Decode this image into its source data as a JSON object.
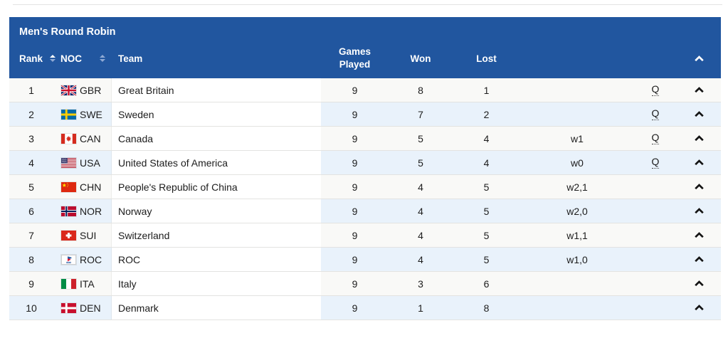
{
  "table": {
    "title": "Men's Round Robin",
    "header": {
      "rank_label": "Rank",
      "noc_label": "NOC",
      "team_label": "Team",
      "games_played_label": "Games Played",
      "won_label": "Won",
      "lost_label": "Lost"
    },
    "colors": {
      "header_bg": "#21569f",
      "row_bg": "#f9f9f7",
      "row_alt_bg": "#e9f2fb",
      "team_cell_bg": "#ffffff",
      "sort_active": "#ffffff",
      "sort_inactive": "#8fa9d4"
    },
    "sort_state": {
      "rank": "ascending",
      "noc": "none"
    },
    "rows": [
      {
        "rank": "1",
        "noc": "GBR",
        "flag": "gbr-flag",
        "team": "Great Britain",
        "played": "9",
        "won": "8",
        "lost": "1",
        "tiebreak": "",
        "qualifier": "Q"
      },
      {
        "rank": "2",
        "noc": "SWE",
        "flag": "swe-flag",
        "team": "Sweden",
        "played": "9",
        "won": "7",
        "lost": "2",
        "tiebreak": "",
        "qualifier": "Q"
      },
      {
        "rank": "3",
        "noc": "CAN",
        "flag": "can-flag",
        "team": "Canada",
        "played": "9",
        "won": "5",
        "lost": "4",
        "tiebreak": "w1",
        "qualifier": "Q"
      },
      {
        "rank": "4",
        "noc": "USA",
        "flag": "usa-flag",
        "team": "United States of America",
        "played": "9",
        "won": "5",
        "lost": "4",
        "tiebreak": "w0",
        "qualifier": "Q"
      },
      {
        "rank": "5",
        "noc": "CHN",
        "flag": "chn-flag",
        "team": "People's Republic of China",
        "played": "9",
        "won": "4",
        "lost": "5",
        "tiebreak": "w2,1",
        "qualifier": ""
      },
      {
        "rank": "6",
        "noc": "NOR",
        "flag": "nor-flag",
        "team": "Norway",
        "played": "9",
        "won": "4",
        "lost": "5",
        "tiebreak": "w2,0",
        "qualifier": ""
      },
      {
        "rank": "7",
        "noc": "SUI",
        "flag": "sui-flag",
        "team": "Switzerland",
        "played": "9",
        "won": "4",
        "lost": "5",
        "tiebreak": "w1,1",
        "qualifier": ""
      },
      {
        "rank": "8",
        "noc": "ROC",
        "flag": "roc-flag",
        "team": "ROC",
        "played": "9",
        "won": "4",
        "lost": "5",
        "tiebreak": "w1,0",
        "qualifier": ""
      },
      {
        "rank": "9",
        "noc": "ITA",
        "flag": "ita-flag",
        "team": "Italy",
        "played": "9",
        "won": "3",
        "lost": "6",
        "tiebreak": "",
        "qualifier": ""
      },
      {
        "rank": "10",
        "noc": "DEN",
        "flag": "den-flag",
        "team": "Denmark",
        "played": "9",
        "won": "1",
        "lost": "8",
        "tiebreak": "",
        "qualifier": ""
      }
    ]
  }
}
